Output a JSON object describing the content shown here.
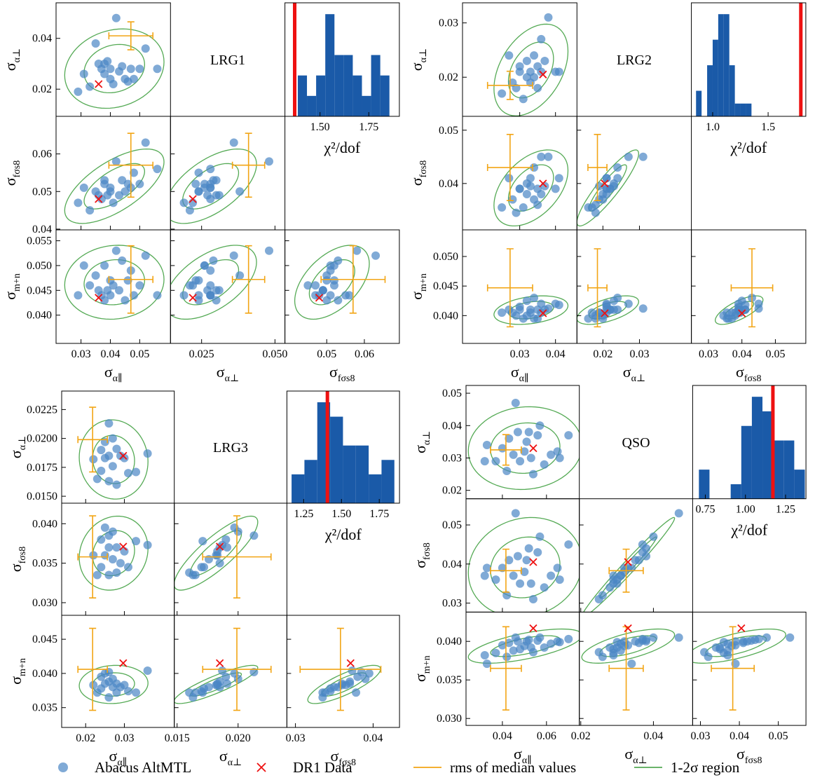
{
  "chart_data": [
    {
      "type": "corner",
      "title": "LRG1",
      "variables": [
        {
          "symbol": "σ",
          "sub": "α∥",
          "xlim": [
            0.0215,
            0.0605
          ],
          "xticks": [
            0.03,
            0.04,
            0.05
          ]
        },
        {
          "symbol": "σ",
          "sub": "α⊥",
          "xlim": [
            0.0144,
            0.0534
          ],
          "xticks": [
            0.025,
            {
              "value": 0.05,
              "label": "0.050"
            }
          ],
          "ylim": [
            0.0093,
            0.054
          ],
          "yticks": [
            0.02,
            0.04
          ]
        },
        {
          "symbol": "σ",
          "sub": "fσs8",
          "xlim": [
            0.0389,
            0.0693
          ],
          "xticks": [
            0.05,
            0.06
          ],
          "ylim": [
            0.0398,
            0.07
          ],
          "yticks": [
            0.04,
            0.05,
            0.06
          ]
        },
        {
          "symbol": "σ",
          "sub": "m+n",
          "ylim": [
            0.0343,
            0.0572
          ],
          "yticks": [
            {
              "value": 0.04,
              "label": "0.040"
            },
            0.045,
            {
              "value": 0.05,
              "label": "0.050"
            },
            0.055
          ]
        }
      ],
      "samples": [
        [
          0.029,
          0.031,
          0.033,
          0.035,
          0.036,
          0.037,
          0.038,
          0.038,
          0.039,
          0.04,
          0.04,
          0.041,
          0.042,
          0.043,
          0.044,
          0.045,
          0.046,
          0.047,
          0.048,
          0.05,
          0.052,
          0.056
        ],
        [
          0.019,
          0.026,
          0.021,
          0.038,
          0.03,
          0.028,
          0.026,
          0.03,
          0.031,
          0.024,
          0.028,
          0.022,
          0.048,
          0.027,
          0.029,
          0.024,
          0.023,
          0.028,
          0.024,
          0.028,
          0.036,
          0.028
        ],
        [
          0.047,
          0.051,
          0.045,
          0.05,
          0.049,
          0.048,
          0.052,
          0.053,
          0.049,
          0.05,
          0.051,
          0.047,
          0.058,
          0.049,
          0.053,
          0.05,
          0.052,
          0.051,
          0.055,
          0.052,
          0.063,
          0.056
        ],
        [
          0.044,
          0.05,
          0.046,
          0.048,
          0.045,
          0.044,
          0.05,
          0.043,
          0.045,
          0.047,
          0.044,
          0.046,
          0.053,
          0.045,
          0.051,
          0.043,
          0.047,
          0.049,
          0.044,
          0.046,
          0.052,
          0.044
        ]
      ],
      "data_point": [
        0.036,
        0.022,
        0.048,
        0.0435
      ],
      "rms_center": [
        0.047,
        0.041,
        0.057,
        0.0472
      ],
      "rms_error": [
        0.0075,
        0.0055,
        0.0085,
        0.0068
      ],
      "hist": {
        "bins": [
          1.386,
          1.433,
          1.48,
          1.527,
          1.574,
          1.621,
          1.668,
          1.715,
          1.762,
          1.809,
          1.856
        ],
        "counts": [
          2,
          1,
          2,
          5,
          3,
          3,
          2,
          1,
          3,
          2
        ],
        "xlim": [
          1.32,
          1.907
        ],
        "xticks": [
          {
            "value": 1.5,
            "label": "1.50"
          },
          1.75
        ],
        "label": "χ²/dof",
        "value": 1.37,
        "color": "#1a5aa8",
        "value_color": "#ee1111"
      }
    },
    {
      "type": "corner",
      "title": "LRG2",
      "variables": [
        {
          "symbol": "σ",
          "sub": "α∥",
          "xlim": [
            0.014,
            0.046
          ],
          "xticks": [
            0.03,
            0.04
          ]
        },
        {
          "symbol": "σ",
          "sub": "α⊥",
          "xlim": [
            0.0129,
            0.0442
          ],
          "xticks": [
            0.02,
            0.03
          ],
          "ylim": [
            0.0128,
            0.0337
          ],
          "yticks": [
            0.02,
            0.03
          ]
        },
        {
          "symbol": "σ",
          "sub": "fσs8",
          "xlim": [
            0.0249,
            0.0591
          ],
          "xticks": [
            0.03,
            0.04,
            0.05
          ],
          "ylim": [
            0.0313,
            0.0526
          ],
          "yticks": [
            0.04,
            0.05
          ]
        },
        {
          "symbol": "σ",
          "sub": "m+n",
          "ylim": [
            0.0353,
            0.0545
          ],
          "yticks": [
            {
              "value": 0.04,
              "label": "0.040"
            },
            0.045,
            {
              "value": 0.05,
              "label": "0.050"
            }
          ]
        }
      ],
      "samples": [
        [
          0.025,
          0.027,
          0.028,
          0.029,
          0.03,
          0.03,
          0.031,
          0.032,
          0.032,
          0.033,
          0.033,
          0.034,
          0.034,
          0.035,
          0.035,
          0.036,
          0.036,
          0.037,
          0.038,
          0.04,
          0.041
        ],
        [
          0.017,
          0.024,
          0.019,
          0.018,
          0.021,
          0.022,
          0.016,
          0.02,
          0.023,
          0.019,
          0.021,
          0.02,
          0.024,
          0.018,
          0.022,
          0.027,
          0.021,
          0.023,
          0.031,
          0.021,
          0.021
        ],
        [
          0.0355,
          0.041,
          0.037,
          0.0345,
          0.039,
          0.039,
          0.0355,
          0.038,
          0.04,
          0.0395,
          0.041,
          0.037,
          0.043,
          0.036,
          0.039,
          0.045,
          0.038,
          0.0395,
          0.045,
          0.039,
          0.041
        ],
        [
          0.0405,
          0.041,
          0.0405,
          0.04,
          0.0415,
          0.041,
          0.0395,
          0.04,
          0.0425,
          0.0405,
          0.041,
          0.0395,
          0.043,
          0.0395,
          0.041,
          0.042,
          0.0405,
          0.041,
          0.0412,
          0.042,
          0.0418
        ]
      ],
      "data_point": [
        0.0365,
        0.0205,
        0.04,
        0.0404
      ],
      "rms_center": [
        0.0273,
        0.0185,
        0.043,
        0.0447
      ],
      "rms_error": [
        0.0063,
        0.0026,
        0.0062,
        0.0066
      ],
      "hist": {
        "bins": [
          0.85,
          0.9,
          0.95,
          1.0,
          1.05,
          1.1,
          1.15,
          1.2,
          1.25,
          1.3,
          1.35
        ],
        "counts": [
          2,
          0,
          4,
          6,
          8,
          8,
          4,
          1,
          1,
          1
        ],
        "xlim": [
          0.808,
          1.84
        ],
        "xticks": [
          {
            "value": 1,
            "label": "1.0"
          },
          1.5
        ],
        "label": "χ²/dof",
        "value": 1.795,
        "color": "#1a5aa8",
        "value_color": "#ee1111"
      }
    },
    {
      "type": "corner",
      "title": "LRG3",
      "variables": [
        {
          "symbol": "σ",
          "sub": "α∥",
          "xlim": [
            0.0138,
            0.0429
          ],
          "xticks": [
            0.02,
            0.03
          ]
        },
        {
          "symbol": "σ",
          "sub": "α⊥",
          "xlim": [
            0.01477,
            0.024
          ],
          "xticks": [
            0.015,
            {
              "value": 0.02,
              "label": "0.020"
            }
          ],
          "ylim": [
            0.0144,
            0.0241
          ],
          "yticks": [
            {
              "value": 0.015,
              "label": "0.0150"
            },
            0.0175,
            {
              "value": 0.02,
              "label": "0.0200"
            },
            0.0225
          ]
        },
        {
          "symbol": "σ",
          "sub": "fσs8",
          "xlim": [
            0.0289,
            0.0434
          ],
          "xticks": [
            0.03,
            0.04
          ],
          "ylim": [
            0.0284,
            0.0426
          ],
          "yticks": [
            {
              "value": 0.03,
              "label": "0.030"
            },
            0.035,
            {
              "value": 0.04,
              "label": "0.040"
            }
          ]
        },
        {
          "symbol": "σ",
          "sub": "m+n",
          "ylim": [
            0.0321,
            0.0485
          ],
          "yticks": [
            0.035,
            {
              "value": 0.04,
              "label": "0.040"
            },
            0.045
          ]
        }
      ],
      "samples": [
        [
          0.022,
          0.023,
          0.024,
          0.024,
          0.025,
          0.025,
          0.026,
          0.026,
          0.026,
          0.027,
          0.027,
          0.028,
          0.028,
          0.029,
          0.03,
          0.031,
          0.033,
          0.036
        ],
        [
          0.0182,
          0.0165,
          0.019,
          0.0172,
          0.0183,
          0.0197,
          0.0163,
          0.0185,
          0.0213,
          0.0176,
          0.02,
          0.016,
          0.0191,
          0.0185,
          0.0183,
          0.017,
          0.0171,
          0.0187
        ],
        [
          0.036,
          0.0335,
          0.038,
          0.0345,
          0.036,
          0.0395,
          0.0335,
          0.037,
          0.0385,
          0.0355,
          0.039,
          0.0338,
          0.037,
          0.035,
          0.0365,
          0.0345,
          0.0378,
          0.0373
        ],
        [
          0.0383,
          0.0372,
          0.0395,
          0.0378,
          0.0385,
          0.04,
          0.0365,
          0.0388,
          0.0402,
          0.038,
          0.0392,
          0.0372,
          0.0385,
          0.038,
          0.0383,
          0.0374,
          0.0372,
          0.0404
        ]
      ],
      "data_point": [
        0.0297,
        0.0185,
        0.0371,
        0.0415
      ],
      "rms_center": [
        0.0218,
        0.0199,
        0.0358,
        0.0406
      ],
      "rms_error": [
        0.0038,
        0.0028,
        0.0052,
        0.006
      ],
      "hist": {
        "bins": [
          1.17,
          1.255,
          1.34,
          1.425,
          1.51,
          1.595,
          1.68,
          1.765,
          1.85
        ],
        "counts": [
          2,
          3,
          7,
          6,
          4,
          4,
          2,
          3
        ],
        "xlim": [
          1.139,
          1.884
        ],
        "xticks": [
          1.25,
          {
            "value": 1.5,
            "label": "1.50"
          },
          1.75
        ],
        "label": "χ²/dof",
        "value": 1.407,
        "color": "#1a5aa8",
        "value_color": "#ee1111"
      }
    },
    {
      "type": "corner",
      "title": "QSO",
      "variables": [
        {
          "symbol": "σ",
          "sub": "α∥",
          "xlim": [
            0.0235,
            0.0749
          ],
          "xticks": [
            0.04,
            0.06
          ]
        },
        {
          "symbol": "σ",
          "sub": "α⊥",
          "xlim": [
            0.0196,
            0.0508
          ],
          "xticks": [
            0.02,
            0.04
          ],
          "ylim": [
            0.0174,
            0.0524
          ],
          "yticks": [
            0.02,
            0.03,
            0.04,
            0.05
          ]
        },
        {
          "symbol": "σ",
          "sub": "fσs8",
          "xlim": [
            0.028,
            0.0571
          ],
          "xticks": [
            0.03,
            0.04,
            0.05
          ],
          "ylim": [
            0.0277,
            0.0567
          ],
          "yticks": [
            0.03,
            0.04,
            0.05
          ]
        },
        {
          "symbol": "σ",
          "sub": "m+n",
          "ylim": [
            0.0291,
            0.0438
          ],
          "yticks": [
            {
              "value": 0.03,
              "label": "0.030"
            },
            0.035,
            {
              "value": 0.04,
              "label": "0.040"
            }
          ]
        }
      ],
      "samples": [
        [
          0.032,
          0.033,
          0.037,
          0.04,
          0.042,
          0.043,
          0.045,
          0.046,
          0.047,
          0.048,
          0.05,
          0.051,
          0.052,
          0.053,
          0.054,
          0.056,
          0.057,
          0.059,
          0.062,
          0.065,
          0.066,
          0.07
        ],
        [
          0.029,
          0.034,
          0.029,
          0.033,
          0.026,
          0.036,
          0.031,
          0.047,
          0.038,
          0.029,
          0.032,
          0.035,
          0.038,
          0.03,
          0.025,
          0.037,
          0.04,
          0.028,
          0.031,
          0.032,
          0.03,
          0.037
        ],
        [
          0.037,
          0.039,
          0.036,
          0.039,
          0.032,
          0.041,
          0.037,
          0.053,
          0.042,
          0.035,
          0.038,
          0.041,
          0.044,
          0.035,
          0.031,
          0.043,
          0.047,
          0.034,
          0.037,
          0.039,
          0.036,
          0.045
        ],
        [
          0.0382,
          0.0371,
          0.0385,
          0.0395,
          0.038,
          0.0398,
          0.0388,
          0.0405,
          0.04,
          0.039,
          0.0394,
          0.04,
          0.0402,
          0.0392,
          0.0386,
          0.0401,
          0.0405,
          0.0392,
          0.0397,
          0.04,
          0.0399,
          0.0403
        ]
      ],
      "data_point": [
        0.054,
        0.033,
        0.0405,
        0.0417
      ],
      "rms_center": [
        0.0416,
        0.0325,
        0.0383,
        0.0365
      ],
      "rms_error": [
        0.007,
        0.0047,
        0.0055,
        0.0054
      ],
      "hist": {
        "bins": [
          0.71,
          0.776,
          0.842,
          0.908,
          0.974,
          1.04,
          1.106,
          1.172,
          1.238,
          1.304,
          1.37
        ],
        "counts": [
          2,
          0,
          0,
          1,
          5,
          7,
          6,
          4,
          4,
          2
        ],
        "xlim": [
          0.671,
          1.377
        ],
        "xticks": [
          0.75,
          {
            "value": 1,
            "label": "1.00"
          },
          1.25
        ],
        "label": "χ²/dof",
        "value": 1.171,
        "color": "#1a5aa8",
        "value_color": "#ee1111"
      }
    }
  ],
  "legend": [
    {
      "name": "Abacus AltMTL",
      "color": "#4a86c5"
    },
    {
      "name": "DR1 Data",
      "color": "#ee1111"
    },
    {
      "name": "rms of median values",
      "color": "#f2a515"
    },
    {
      "name": "1-2σ region",
      "color": "#55aa55"
    }
  ]
}
